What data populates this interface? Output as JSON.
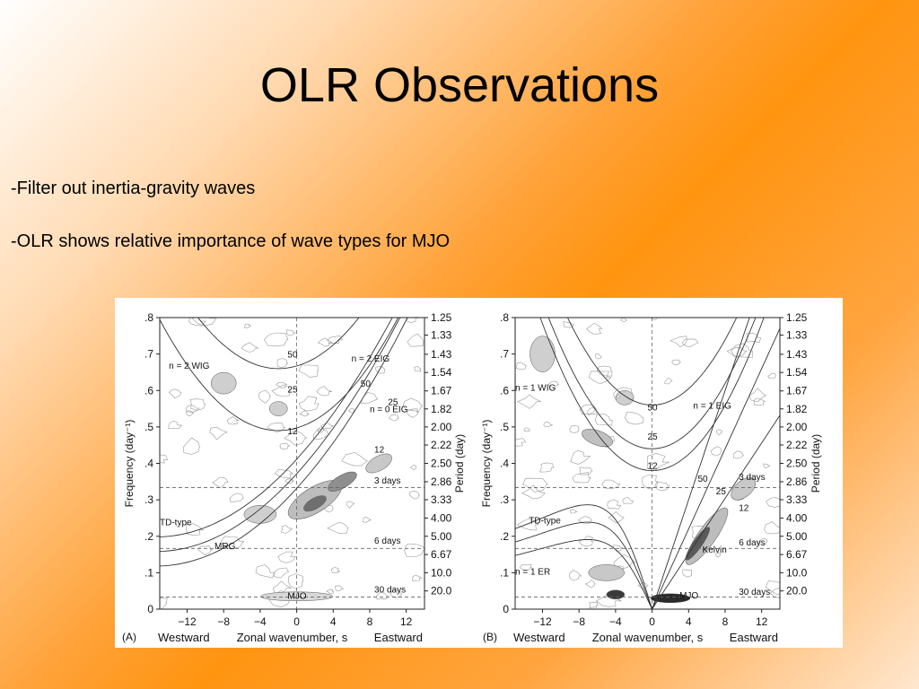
{
  "slide": {
    "title": "OLR Observations",
    "bullets": [
      "-Filter out inertia-gravity waves",
      "-OLR shows relative importance of wave types for MJO"
    ]
  },
  "figure": {
    "panels": [
      {
        "id": "A",
        "label": "(A)",
        "ylabel": "Frequency (day⁻¹)",
        "ylabel_right": "Period (day)",
        "xlabel": "Zonal wavenumber, s",
        "x_left_label": "Westward",
        "x_right_label": "Eastward",
        "x_ticks": [
          "−12",
          "−8",
          "−4",
          "0",
          "4",
          "8",
          "12"
        ],
        "y_ticks": [
          "0",
          ".1",
          ".2",
          ".3",
          ".4",
          ".5",
          ".6",
          ".7",
          ".8"
        ],
        "period_ticks": [
          "1.25",
          "1.33",
          "1.43",
          "1.54",
          "1.67",
          "1.82",
          "2.00",
          "2.22",
          "2.50",
          "2.86",
          "3.33",
          "4.00",
          "5.00",
          "6.67",
          "10.0",
          "20.0"
        ],
        "annotations": [
          "n = 2 WIG",
          "n = 2 EIG",
          "n = 0 EIG",
          "TD-type",
          "MRG",
          "MJO",
          "3 days",
          "6 days",
          "30 days",
          "50",
          "25",
          "12",
          "50",
          "25",
          "12"
        ]
      },
      {
        "id": "B",
        "label": "(B)",
        "ylabel": "Frequency (day⁻¹)",
        "ylabel_right": "Period (day)",
        "xlabel": "Zonal wavenumber, s",
        "x_left_label": "Westward",
        "x_right_label": "Eastward",
        "x_ticks": [
          "−12",
          "−8",
          "−4",
          "0",
          "4",
          "8",
          "12"
        ],
        "y_ticks": [
          "0",
          ".1",
          ".2",
          ".3",
          ".4",
          ".5",
          ".6",
          ".7",
          ".8"
        ],
        "period_ticks": [
          "1.25",
          "1.33",
          "1.43",
          "1.54",
          "1.67",
          "1.82",
          "2.00",
          "2.22",
          "2.50",
          "2.86",
          "3.33",
          "4.00",
          "5.00",
          "6.67",
          "10.0",
          "20.0"
        ],
        "annotations": [
          "n = 1 WIG",
          "n = 1 EIG",
          "n = 1 ER",
          "TD-type",
          "Kelvin",
          "MJO",
          "3 days",
          "6 days",
          "30 days",
          "50",
          "25",
          "12",
          "50",
          "25",
          "12"
        ]
      }
    ]
  }
}
